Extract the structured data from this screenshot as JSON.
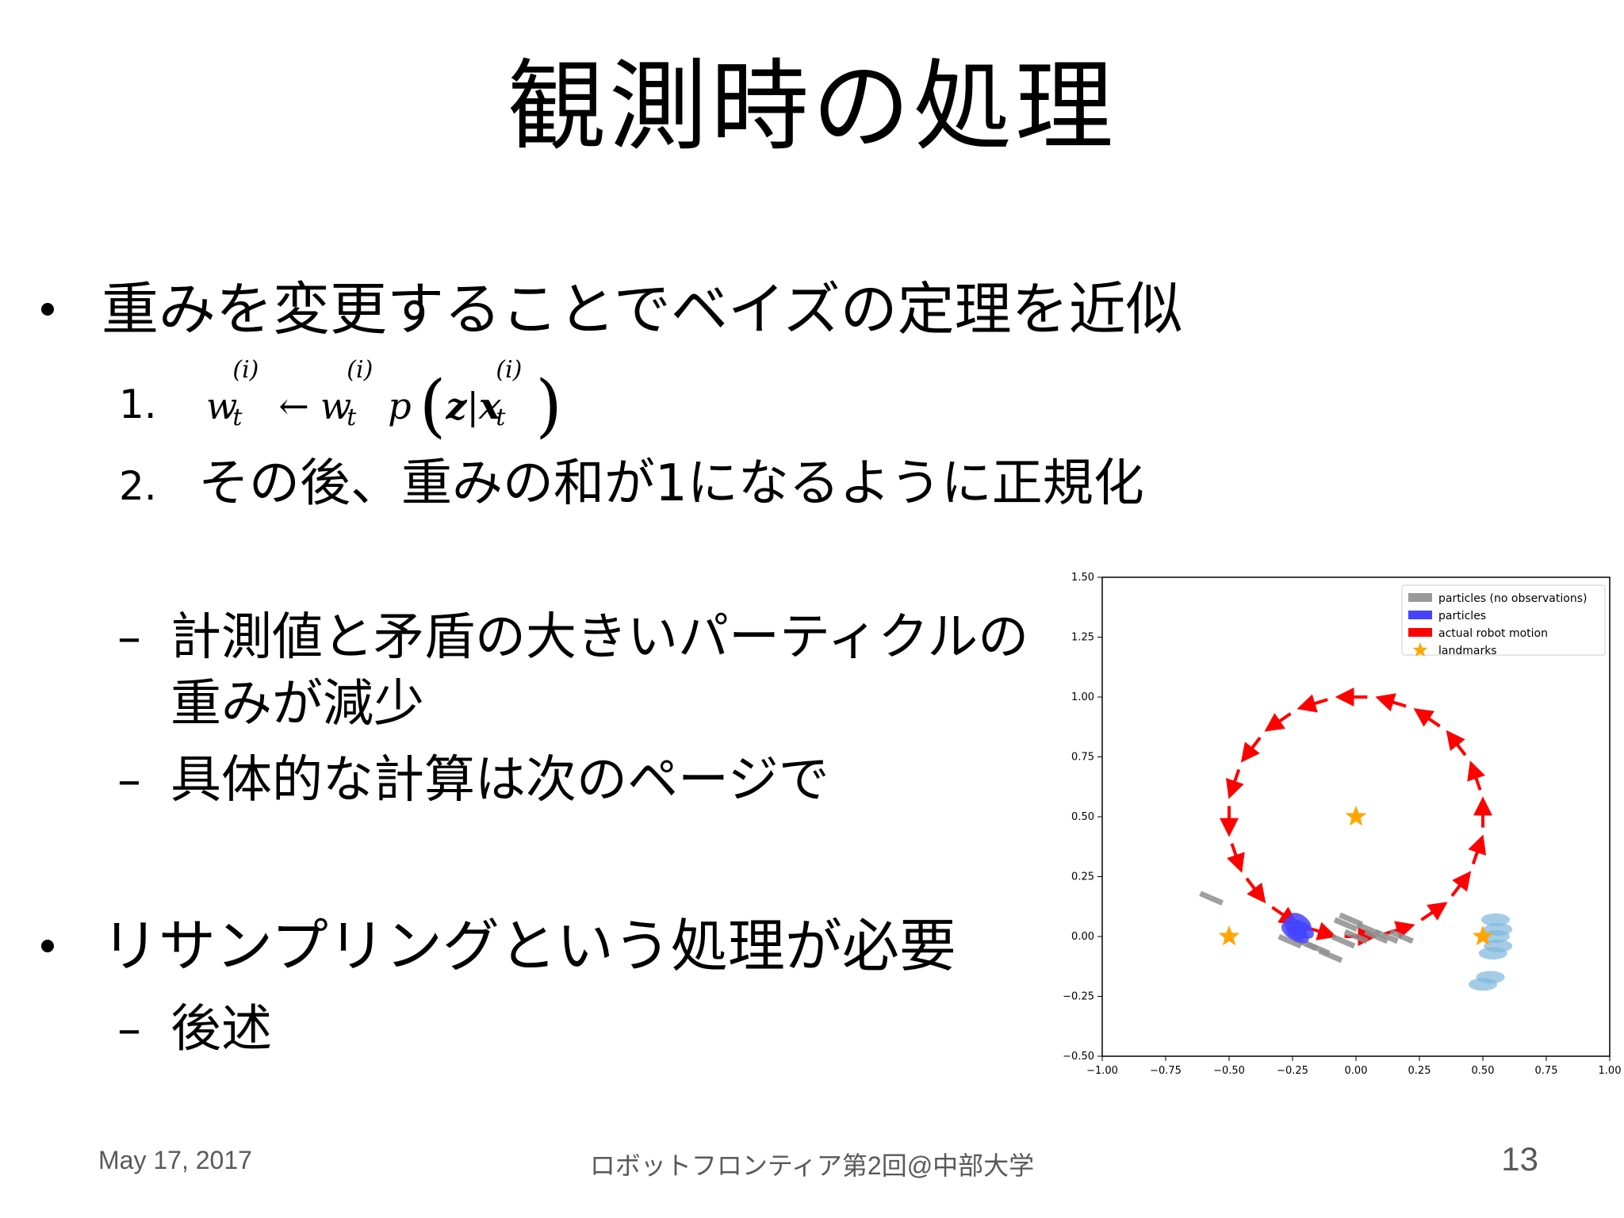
{
  "title": "観測時の処理",
  "bullet1": {
    "text": "重みを変更することでベイズの定理を近似",
    "steps": [
      {
        "num": "1."
      },
      {
        "num": "2.",
        "text": "その後、重みの和が1になるように正規化"
      }
    ],
    "subs": [
      "計測値と矛盾の大きいパーティクルの",
      "重みが減少",
      "具体的な計算は次のページで"
    ]
  },
  "equation": {
    "w": "w",
    "t": "t",
    "i": "(i)",
    "arrow": "←",
    "p": "p",
    "z": "z",
    "bar": "|",
    "x": "x"
  },
  "bullet2": {
    "text": "リサンプリングという処理が必要",
    "sub": "後述"
  },
  "dash": "–",
  "footer": {
    "date": "May 17, 2017",
    "center": "ロボットフロンティア第2回@中部大学",
    "page": "13"
  },
  "chart_data": {
    "type": "scatter",
    "xlim": [
      -1.0,
      1.0
    ],
    "ylim": [
      -0.5,
      1.5
    ],
    "xticks": [
      "−1.00",
      "−0.75",
      "−0.50",
      "−0.25",
      "0.00",
      "0.25",
      "0.50",
      "0.75",
      "1.00"
    ],
    "yticks": [
      "1.50",
      "1.25",
      "1.00",
      "0.75",
      "0.50",
      "0.25",
      "0.00",
      "−0.25",
      "−0.50"
    ],
    "legend_position": "top-right",
    "legend": [
      {
        "label": "particles (no observations)",
        "color": "#999999"
      },
      {
        "label": "particles",
        "color": "#4444ff"
      },
      {
        "label": "actual robot motion",
        "color": "#ff0000"
      },
      {
        "label": "landmarks",
        "color": "#ffa500"
      }
    ],
    "landmarks": [
      [
        -0.5,
        0.0
      ],
      [
        0.5,
        0.0
      ],
      [
        0.0,
        0.5
      ]
    ],
    "robot_motion_circle": {
      "center": [
        0.0,
        0.5
      ],
      "radius": 0.5,
      "count": 20
    },
    "particles_no_obs": [
      [
        -0.57,
        0.16
      ],
      [
        -0.26,
        -0.02
      ],
      [
        -0.2,
        -0.03
      ],
      [
        -0.15,
        -0.05
      ],
      [
        -0.1,
        -0.08
      ],
      [
        -0.05,
        -0.02
      ],
      [
        0.0,
        0.0
      ],
      [
        0.05,
        0.03
      ],
      [
        0.08,
        0.0
      ],
      [
        0.12,
        0.0
      ],
      [
        0.18,
        0.0
      ],
      [
        -0.02,
        0.07
      ],
      [
        -0.04,
        0.05
      ]
    ],
    "particles": [
      [
        -0.24,
        0.04
      ],
      [
        -0.22,
        0.06
      ],
      [
        -0.25,
        0.02
      ],
      [
        -0.23,
        0.01
      ],
      [
        -0.21,
        0.03
      ]
    ],
    "particles_light": [
      [
        0.55,
        0.07
      ],
      [
        0.56,
        0.03
      ],
      [
        0.55,
        0.0
      ],
      [
        0.56,
        -0.04
      ],
      [
        0.54,
        -0.07
      ],
      [
        0.53,
        -0.17
      ],
      [
        0.5,
        -0.2
      ]
    ]
  }
}
